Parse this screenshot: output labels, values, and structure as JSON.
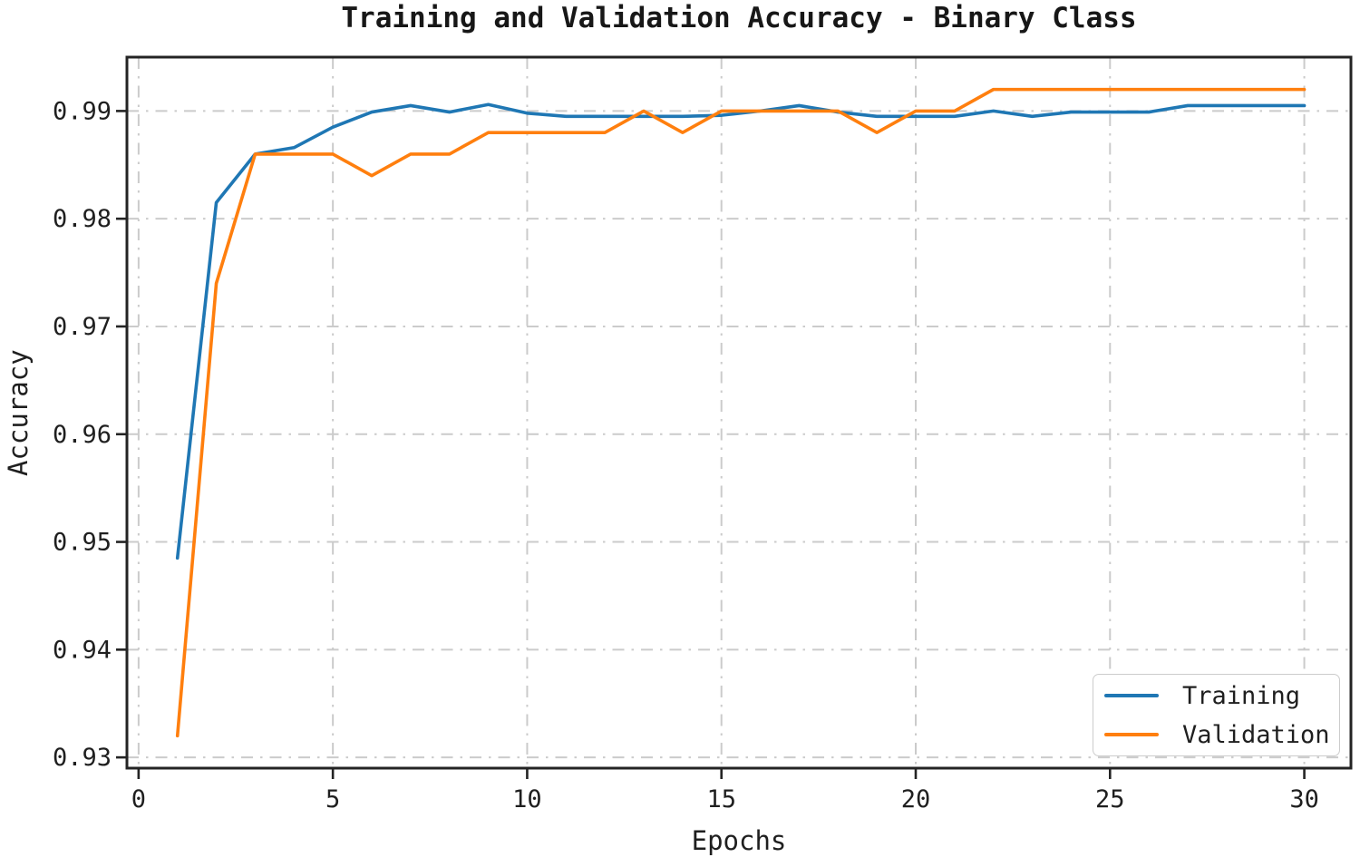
{
  "colors": {
    "training": "#1f77b4",
    "validation": "#ff7f0e",
    "grid": "#cbcbcb",
    "spine": "#242424",
    "text": "#1f1f1f"
  },
  "chart_data": {
    "type": "line",
    "title": "Training and Validation Accuracy - Binary Class",
    "xlabel": "Epochs",
    "ylabel": "Accuracy",
    "x": [
      1,
      2,
      3,
      4,
      5,
      6,
      7,
      8,
      9,
      10,
      11,
      12,
      13,
      14,
      15,
      16,
      17,
      18,
      19,
      20,
      21,
      22,
      23,
      24,
      25,
      26,
      27,
      28,
      29,
      30
    ],
    "series": [
      {
        "name": "Training",
        "color": "#1f77b4",
        "values": [
          0.9485,
          0.9815,
          0.986,
          0.9866,
          0.9885,
          0.9899,
          0.9905,
          0.9899,
          0.9906,
          0.9898,
          0.9895,
          0.9895,
          0.9895,
          0.9895,
          0.9896,
          0.99,
          0.9905,
          0.9899,
          0.9895,
          0.9895,
          0.9895,
          0.99,
          0.9895,
          0.9899,
          0.9899,
          0.9899,
          0.9905,
          0.9905,
          0.9905,
          0.9905
        ]
      },
      {
        "name": "Validation",
        "color": "#ff7f0e",
        "values": [
          0.932,
          0.974,
          0.986,
          0.986,
          0.986,
          0.984,
          0.986,
          0.986,
          0.988,
          0.988,
          0.988,
          0.988,
          0.99,
          0.988,
          0.99,
          0.99,
          0.99,
          0.99,
          0.988,
          0.99,
          0.99,
          0.992,
          0.992,
          0.992,
          0.992,
          0.992,
          0.992,
          0.992,
          0.992,
          0.992
        ]
      }
    ],
    "xticks": [
      0,
      5,
      10,
      15,
      20,
      25,
      30
    ],
    "yticks": [
      0.93,
      0.94,
      0.95,
      0.96,
      0.97,
      0.98,
      0.99
    ],
    "xlim": [
      -0.3,
      31.2
    ],
    "ylim": [
      0.929,
      0.995
    ],
    "grid": true,
    "grid_style": "dash-dot",
    "legend": {
      "position": "lower right",
      "entries": [
        "Training",
        "Validation"
      ]
    }
  }
}
